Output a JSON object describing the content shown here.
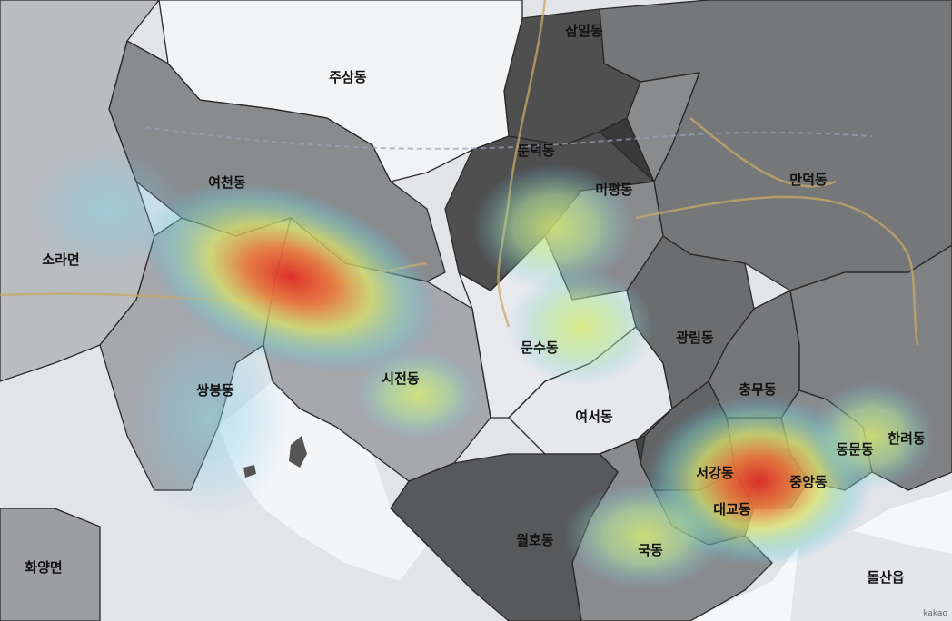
{
  "map": {
    "watermark": "kakao",
    "colors": {
      "land": "#e4e6ea",
      "water": "#f7f8fa",
      "road": "#c9a86a",
      "boundary": "#2a2a2a",
      "heat_low": "#3fb8e6",
      "heat_mid": "#c4e87a",
      "heat_high": "#e8302a"
    },
    "districts": [
      {
        "id": "samil",
        "name": "삼일동",
        "shade": 0.75
      },
      {
        "id": "jusam",
        "name": "주삼동",
        "shade": 0.0
      },
      {
        "id": "yeocheon",
        "name": "여천동",
        "shade": 0.45
      },
      {
        "id": "sora",
        "name": "소라면",
        "shade": 0.25
      },
      {
        "id": "dundeok",
        "name": "둔덕동",
        "shade": 0.8
      },
      {
        "id": "mipyeong",
        "name": "미평동",
        "shade": 0.5
      },
      {
        "id": "mandeok",
        "name": "만덕동",
        "shade": 0.6
      },
      {
        "id": "ssangbong",
        "name": "쌍봉동",
        "shade": 0.35
      },
      {
        "id": "sijeon",
        "name": "시전동",
        "shade": 0.3
      },
      {
        "id": "munsu",
        "name": "문수동",
        "shade": 0.15
      },
      {
        "id": "yeoseo",
        "name": "여서동",
        "shade": 0.2
      },
      {
        "id": "gwangnim",
        "name": "광림동",
        "shade": 0.6
      },
      {
        "id": "chungmu",
        "name": "충무동",
        "shade": 0.55
      },
      {
        "id": "hanryeo",
        "name": "한려동",
        "shade": 0.55
      },
      {
        "id": "dongmun",
        "name": "동문동",
        "shade": 0.45
      },
      {
        "id": "seogang",
        "name": "서강동",
        "shade": 0.65
      },
      {
        "id": "jungang",
        "name": "중앙동",
        "shade": 0.55
      },
      {
        "id": "daegyo",
        "name": "대교동",
        "shade": 0.6
      },
      {
        "id": "wolho",
        "name": "월호동",
        "shade": 0.75
      },
      {
        "id": "guk",
        "name": "국동",
        "shade": 0.5
      },
      {
        "id": "hwayang",
        "name": "화양면",
        "shade": 0.35
      },
      {
        "id": "dolsan",
        "name": "돌산읍",
        "shade": 0.0
      }
    ],
    "hotspots": [
      {
        "name": "여천동",
        "intensity": 1.0
      },
      {
        "name": "중앙동",
        "intensity": 1.0
      },
      {
        "name": "미평동",
        "intensity": 0.45
      },
      {
        "name": "문수동",
        "intensity": 0.45
      },
      {
        "name": "시전동",
        "intensity": 0.35
      },
      {
        "name": "국동",
        "intensity": 0.4
      },
      {
        "name": "한려동",
        "intensity": 0.3
      }
    ]
  }
}
